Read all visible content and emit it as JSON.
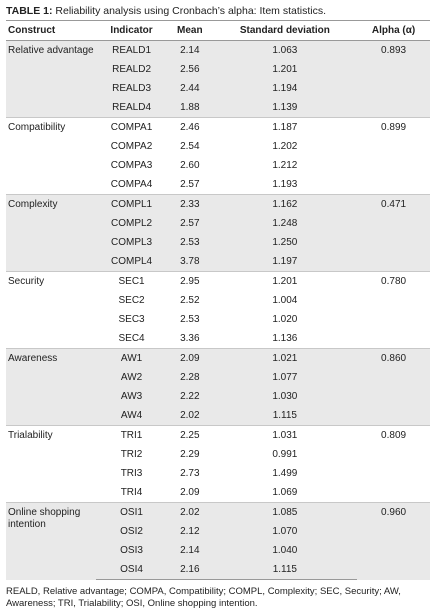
{
  "caption": {
    "label": "TABLE 1:",
    "text": "Reliability analysis using Cronbach’s alpha: Item statistics."
  },
  "table": {
    "headers": [
      "Construct",
      "Indicator",
      "Mean",
      "Standard deviation",
      "Alpha (α)"
    ],
    "groups": [
      {
        "construct": "Relative advantage",
        "alpha": "0.893",
        "rows": [
          [
            "REALD1",
            "2.14",
            "1.063"
          ],
          [
            "REALD2",
            "2.56",
            "1.201"
          ],
          [
            "REALD3",
            "2.44",
            "1.194"
          ],
          [
            "REALD4",
            "1.88",
            "1.139"
          ]
        ]
      },
      {
        "construct": "Compatibility",
        "alpha": "0.899",
        "rows": [
          [
            "COMPA1",
            "2.46",
            "1.187"
          ],
          [
            "COMPA2",
            "2.54",
            "1.202"
          ],
          [
            "COMPA3",
            "2.60",
            "1.212"
          ],
          [
            "COMPA4",
            "2.57",
            "1.193"
          ]
        ]
      },
      {
        "construct": "Complexity",
        "alpha": "0.471",
        "rows": [
          [
            "COMPL1",
            "2.33",
            "1.162"
          ],
          [
            "COMPL2",
            "2.57",
            "1.248"
          ],
          [
            "COMPL3",
            "2.53",
            "1.250"
          ],
          [
            "COMPL4",
            "3.78",
            "1.197"
          ]
        ]
      },
      {
        "construct": "Security",
        "alpha": "0.780",
        "rows": [
          [
            "SEC1",
            "2.95",
            "1.201"
          ],
          [
            "SEC2",
            "2.52",
            "1.004"
          ],
          [
            "SEC3",
            "2.53",
            "1.020"
          ],
          [
            "SEC4",
            "3.36",
            "1.136"
          ]
        ]
      },
      {
        "construct": "Awareness",
        "alpha": "0.860",
        "rows": [
          [
            "AW1",
            "2.09",
            "1.021"
          ],
          [
            "AW2",
            "2.28",
            "1.077"
          ],
          [
            "AW3",
            "2.22",
            "1.030"
          ],
          [
            "AW4",
            "2.02",
            "1.115"
          ]
        ]
      },
      {
        "construct": "Trialability",
        "alpha": "0.809",
        "rows": [
          [
            "TRI1",
            "2.25",
            "1.031"
          ],
          [
            "TRI2",
            "2.29",
            "0.991"
          ],
          [
            "TRI3",
            "2.73",
            "1.499"
          ],
          [
            "TRI4",
            "2.09",
            "1.069"
          ]
        ]
      },
      {
        "construct": "Online shopping intention",
        "alpha": "0.960",
        "rows": [
          [
            "OSI1",
            "2.02",
            "1.085"
          ],
          [
            "OSI2",
            "2.12",
            "1.070"
          ],
          [
            "OSI3",
            "2.14",
            "1.040"
          ],
          [
            "OSI4",
            "2.16",
            "1.115"
          ]
        ]
      }
    ]
  },
  "footnote": "REALD, Relative advantage; COMPA, Compatibility; COMPL, Complexity; SEC, Security; AW, Awareness; TRI, Trialability; OSI, Online shopping intention."
}
